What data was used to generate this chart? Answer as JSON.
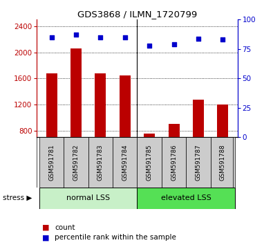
{
  "title": "GDS3868 / ILMN_1720799",
  "samples": [
    "GSM591781",
    "GSM591782",
    "GSM591783",
    "GSM591784",
    "GSM591785",
    "GSM591786",
    "GSM591787",
    "GSM591788"
  ],
  "counts": [
    1680,
    2060,
    1680,
    1650,
    760,
    900,
    1270,
    1200
  ],
  "percentiles": [
    85,
    87,
    85,
    85,
    78,
    79,
    84,
    83
  ],
  "ylim_left": [
    700,
    2500
  ],
  "ylim_right": [
    0,
    100
  ],
  "yticks_left": [
    800,
    1200,
    1600,
    2000,
    2400
  ],
  "yticks_right": [
    0,
    25,
    50,
    75,
    100
  ],
  "bar_color": "#bb0000",
  "scatter_color": "#0000cc",
  "sample_box_color": "#cccccc",
  "normal_lss_color": "#c8f0c8",
  "elevated_lss_color": "#55e055",
  "stress_arrow": "▶",
  "bar_width": 0.45
}
